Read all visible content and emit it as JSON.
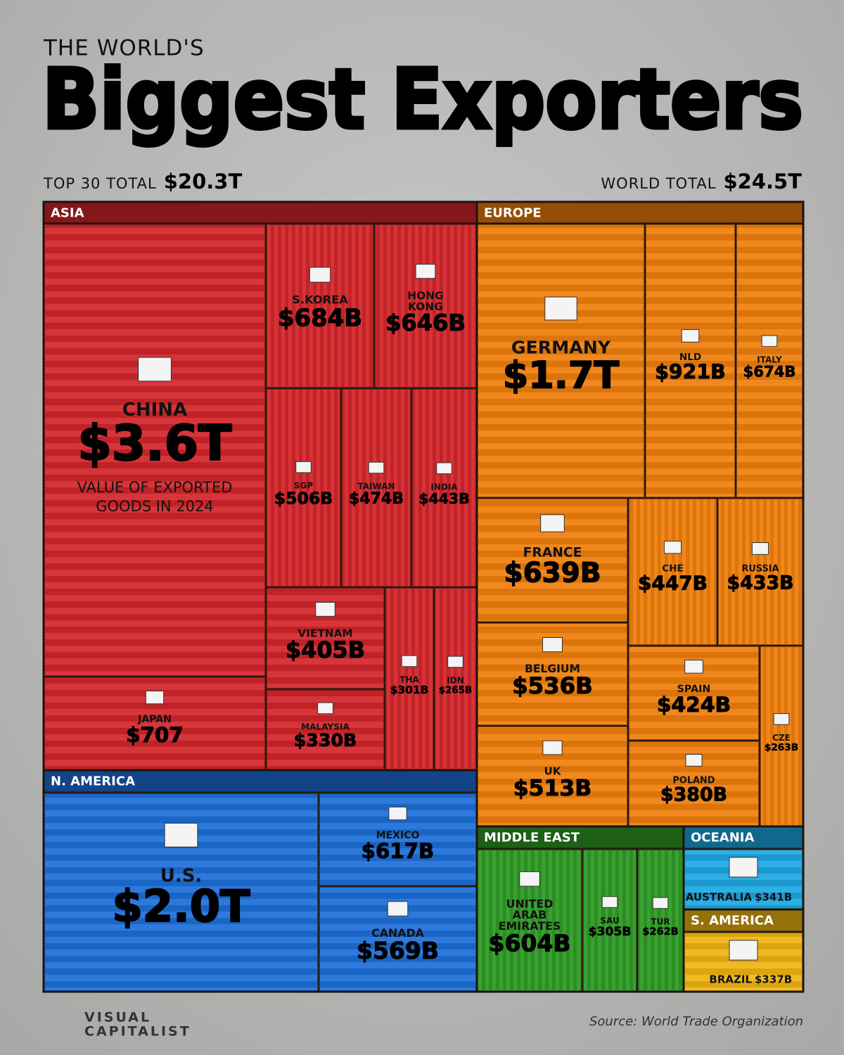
{
  "chart_data": {
    "type": "treemap",
    "subtitle": "THE WORLD'S",
    "title": "Biggest Exporters",
    "totals": [
      {
        "name": "TOP 30 TOTAL",
        "value": 20300,
        "value_label": "$20.3T"
      },
      {
        "name": "WORLD TOTAL",
        "value": 24500,
        "value_label": "$24.5T"
      }
    ],
    "annotation": [
      "VALUE OF EXPORTED",
      "GOODS IN 2024"
    ],
    "series": [
      {
        "name": "ASIA",
        "color": "#d3262b",
        "categories": [
          "CHINA",
          "JAPAN",
          "S.KOREA",
          "HONG KONG",
          "SGP",
          "TAIWAN",
          "INDIA",
          "VIETNAM",
          "MALAYSIA",
          "THA",
          "IDN"
        ],
        "values": [
          3600,
          707,
          684,
          646,
          506,
          474,
          443,
          405,
          330,
          301,
          265
        ],
        "value_labels": [
          "$3.6T",
          "$707",
          "$684B",
          "$646B",
          "$506B",
          "$474B",
          "$443B",
          "$405B",
          "$330B",
          "$301B",
          "$265B"
        ]
      },
      {
        "name": "EUROPE",
        "color": "#f07f0c",
        "categories": [
          "GERMANY",
          "NLD",
          "ITALY",
          "FRANCE",
          "BELGIUM",
          "UK",
          "CHE",
          "RUSSIA",
          "SPAIN",
          "POLAND",
          "CZE"
        ],
        "values": [
          1700,
          921,
          674,
          639,
          536,
          513,
          447,
          433,
          424,
          380,
          263
        ],
        "value_labels": [
          "$1.7T",
          "$921B",
          "$674B",
          "$639B",
          "$536B",
          "$513B",
          "$447B",
          "$433B",
          "$424B",
          "$380B",
          "$263B"
        ]
      },
      {
        "name": "N. AMERICA",
        "color": "#1e6fd9",
        "categories": [
          "U.S.",
          "MEXICO",
          "CANADA"
        ],
        "values": [
          2000,
          617,
          569
        ],
        "value_labels": [
          "$2.0T",
          "$617B",
          "$569B"
        ]
      },
      {
        "name": "MIDDLE EAST",
        "color": "#2f9a25",
        "categories": [
          "UNITED ARAB EMIRATES",
          "SAU",
          "TUR"
        ],
        "values": [
          604,
          305,
          262
        ],
        "value_labels": [
          "$604B",
          "$305B",
          "$262B"
        ]
      },
      {
        "name": "OCEANIA",
        "color": "#1da8e2",
        "categories": [
          "AUSTRALIA"
        ],
        "values": [
          341
        ],
        "value_labels": [
          "$341B"
        ]
      },
      {
        "name": "S. AMERICA",
        "color": "#f0b512",
        "categories": [
          "BRAZIL"
        ],
        "values": [
          337
        ],
        "value_labels": [
          "$337B"
        ]
      }
    ],
    "source": "Source: World Trade Organization",
    "logo": [
      "VISUAL",
      "CAPITALIST"
    ]
  }
}
